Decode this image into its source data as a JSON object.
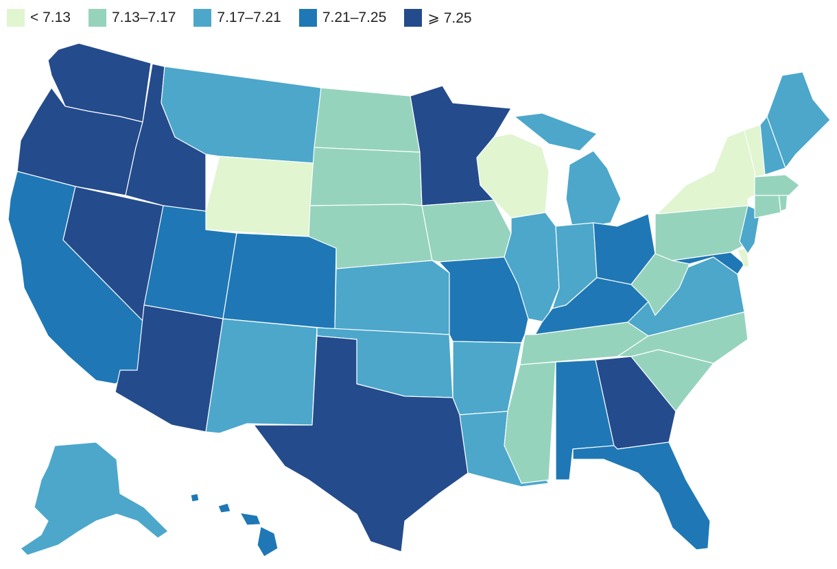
{
  "legend": [
    {
      "label": "< 7.13",
      "color": "#e0f5d0"
    },
    {
      "label": "7.13–7.17",
      "color": "#96d3bd"
    },
    {
      "label": "7.17–7.21",
      "color": "#4ca7cb"
    },
    {
      "label": "7.21–7.25",
      "color": "#1f78b5"
    },
    {
      "label": "⩾ 7.25",
      "color": "#244b8c"
    }
  ],
  "states": {
    "WA": 4,
    "OR": 4,
    "CA": 3,
    "NV": 4,
    "ID": 4,
    "MT": 2,
    "WY": 0,
    "UT": 3,
    "AZ": 4,
    "CO": 3,
    "NM": 2,
    "ND": 1,
    "SD": 1,
    "NE": 1,
    "KS": 2,
    "OK": 2,
    "TX": 4,
    "MN": 4,
    "IA": 1,
    "MO": 3,
    "AR": 2,
    "LA": 2,
    "WI": 0,
    "IL": 2,
    "MI": 2,
    "IN": 2,
    "OH": 3,
    "KY": 3,
    "TN": 1,
    "MS": 1,
    "AL": 3,
    "GA": 4,
    "FL": 3,
    "SC": 1,
    "NC": 1,
    "VA": 2,
    "WV": 1,
    "MD": 3,
    "DE": 0,
    "PA": 1,
    "NJ": 2,
    "NY": 0,
    "CT": 1,
    "RI": 1,
    "MA": 1,
    "VT": 0,
    "NH": 2,
    "ME": 2,
    "AK": 2,
    "HI": 3
  }
}
